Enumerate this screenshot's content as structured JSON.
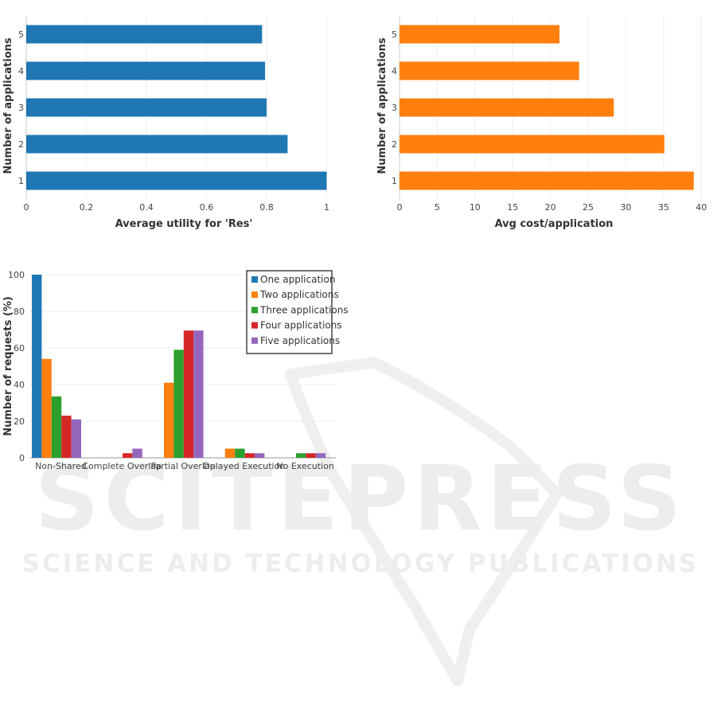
{
  "watermark": {
    "title": "SCITEPRESS",
    "subtitle": "SCIENCE AND TECHNOLOGY PUBLICATIONS"
  },
  "colors": {
    "blue": "#1f77b4",
    "orange": "#ff7f0e",
    "green": "#2ca02c",
    "red": "#d62728",
    "purple": "#9467bd"
  },
  "chart_data": [
    {
      "type": "bar",
      "orientation": "horizontal",
      "categories": [
        "1",
        "2",
        "3",
        "4",
        "5"
      ],
      "values": [
        1.0,
        0.87,
        0.8,
        0.795,
        0.785
      ],
      "xlabel": "Average utility for 'Res'",
      "ylabel": "Number of applications",
      "xticks": [
        "0",
        "0.2",
        "0.4",
        "0.6",
        "0.8",
        "1"
      ],
      "xlim": [
        0,
        1.02
      ],
      "color": "#1f77b4",
      "grid": true
    },
    {
      "type": "bar",
      "orientation": "horizontal",
      "categories": [
        "1",
        "2",
        "3",
        "4",
        "5"
      ],
      "values": [
        39,
        35.1,
        28.4,
        23.8,
        21.2
      ],
      "xlabel": "Avg cost/application",
      "ylabel": "Number of  applications",
      "xticks": [
        "0",
        "5",
        "10",
        "15",
        "20",
        "25",
        "30",
        "35",
        "40"
      ],
      "xlim": [
        0,
        40.5
      ],
      "color": "#ff7f0e",
      "grid": true
    },
    {
      "type": "bar",
      "orientation": "vertical",
      "categories": [
        "Non-Shared",
        "Complete Overlap",
        "Partial Overlap",
        "Delayed Execution",
        "No Execution"
      ],
      "ylabel": "Number of requests (%)",
      "yticks": [
        "0",
        "20",
        "40",
        "60",
        "80",
        "100"
      ],
      "ylim": [
        0,
        100
      ],
      "legend_position": "top-right",
      "grid": true,
      "series": [
        {
          "name": "One application",
          "color": "#1f77b4",
          "values": [
            100,
            0,
            0,
            0,
            0
          ]
        },
        {
          "name": "Two applications",
          "color": "#ff7f0e",
          "values": [
            54,
            0,
            41,
            5,
            0
          ]
        },
        {
          "name": "Three applications",
          "color": "#2ca02c",
          "values": [
            33.5,
            0,
            59,
            5,
            2.5
          ]
        },
        {
          "name": "Four applications",
          "color": "#d62728",
          "values": [
            23,
            2.5,
            69.5,
            2.5,
            2.5
          ]
        },
        {
          "name": "Five applications",
          "color": "#9467bd",
          "values": [
            21,
            5,
            69.5,
            2.5,
            2.5
          ]
        }
      ]
    }
  ]
}
